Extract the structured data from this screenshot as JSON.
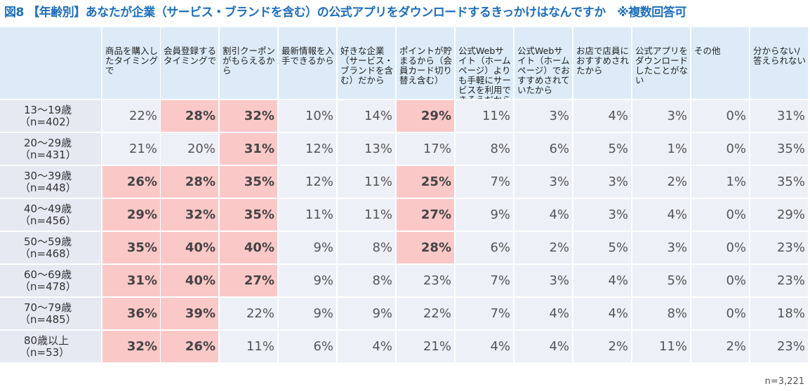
{
  "title": "図8 【年齢別】あなたが企業（サービス・ブランドを含む）の公式アプリをダウンロードするきっかけはなんですか　※複数回答可",
  "footnote": "n=3,221",
  "colors": {
    "title": "#1e6fbd",
    "header_bg": "#dcebf7",
    "row_label_bg": "#e6e8f2",
    "cell_bg": "#eef0f7",
    "highlight": "#fbc8c8"
  },
  "chart_data": {
    "type": "table",
    "columns": [
      "商品を購入したタイミングで",
      "会員登録するタイミングで",
      "割引クーポンがもらえるから",
      "最新情報を入手できるから",
      "好きな企業（サービス・ブランドを含む）だから",
      "ポイントが貯まるから（会員カード切り替え含む）",
      "公式Webサイト（ホームページ）よりも手軽にサービスを利用できそうだから",
      "公式Webサイト（ホームページ）でおすすめされていたから",
      "お店で店員におすすめされたから",
      "公式アプリをダウンロードしたことがない",
      "その他",
      "分からない/答えられない"
    ],
    "rows": [
      {
        "label": "13～19歳",
        "n": "（n=402）",
        "values": [
          22,
          28,
          32,
          10,
          14,
          29,
          11,
          3,
          4,
          3,
          0,
          31
        ],
        "highlight": [
          1,
          2,
          5
        ]
      },
      {
        "label": "20～29歳",
        "n": "（n=431）",
        "values": [
          21,
          20,
          31,
          12,
          13,
          17,
          8,
          6,
          5,
          1,
          0,
          35
        ],
        "highlight": [
          2
        ]
      },
      {
        "label": "30～39歳",
        "n": "（n=448）",
        "values": [
          26,
          28,
          35,
          12,
          11,
          25,
          7,
          3,
          3,
          2,
          1,
          35
        ],
        "highlight": [
          0,
          1,
          2,
          5
        ]
      },
      {
        "label": "40～49歳",
        "n": "（n=456）",
        "values": [
          29,
          32,
          35,
          11,
          11,
          27,
          9,
          4,
          3,
          4,
          0,
          29
        ],
        "highlight": [
          0,
          1,
          2,
          5
        ]
      },
      {
        "label": "50～59歳",
        "n": "（n=468）",
        "values": [
          35,
          40,
          40,
          9,
          8,
          28,
          6,
          2,
          5,
          3,
          0,
          23
        ],
        "highlight": [
          0,
          1,
          2,
          5
        ]
      },
      {
        "label": "60～69歳",
        "n": "（n=478）",
        "values": [
          31,
          40,
          27,
          9,
          8,
          23,
          7,
          3,
          4,
          5,
          0,
          23
        ],
        "highlight": [
          0,
          1,
          2
        ]
      },
      {
        "label": "70～79歳",
        "n": "（n=485）",
        "values": [
          36,
          39,
          22,
          9,
          9,
          22,
          7,
          4,
          4,
          8,
          0,
          18
        ],
        "highlight": [
          0,
          1
        ]
      },
      {
        "label": "80歳以上",
        "n": "（n=53）",
        "values": [
          32,
          26,
          11,
          6,
          4,
          21,
          4,
          4,
          2,
          11,
          2,
          23
        ],
        "highlight": [
          0,
          1
        ]
      }
    ],
    "unit": "%"
  }
}
